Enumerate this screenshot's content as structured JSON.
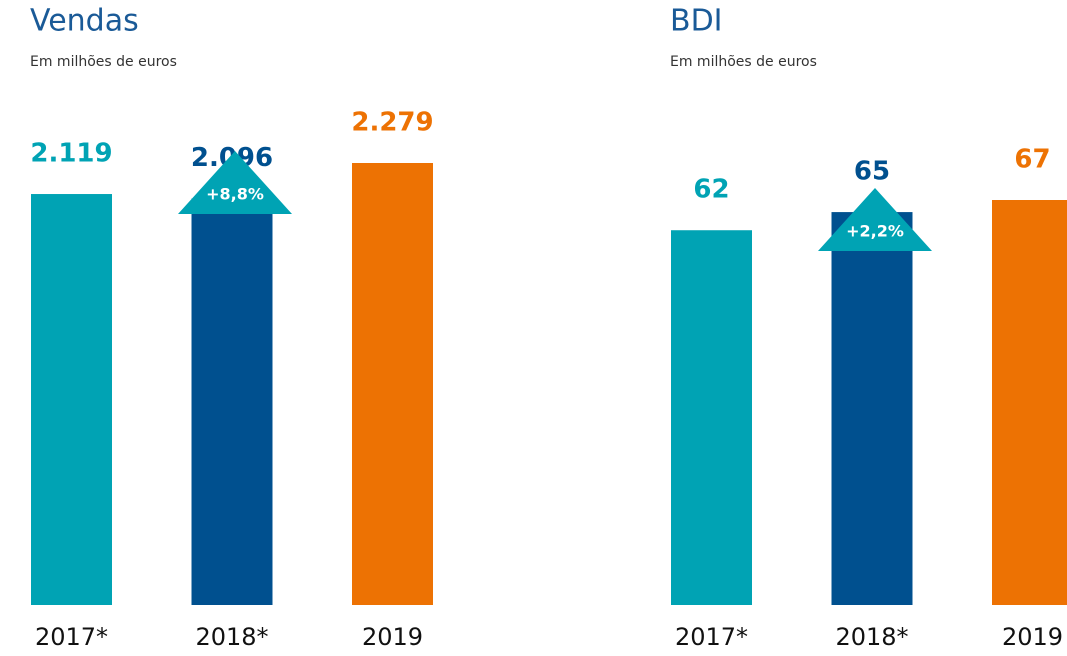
{
  "chart_data": [
    {
      "type": "bar",
      "title": "Vendas",
      "subtitle": "Em milhões de euros",
      "categories": [
        "2017*",
        "2018*",
        "2019"
      ],
      "values": [
        2119,
        2096,
        2279
      ],
      "value_labels": [
        "2.119",
        "2.096",
        "2.279"
      ],
      "colors": [
        "#00a3b4",
        "#00508f",
        "#ed7203"
      ],
      "annotation": "+8,8%"
    },
    {
      "type": "bar",
      "title": "BDI",
      "subtitle": "Em milhões de euros",
      "categories": [
        "2017*",
        "2018*",
        "2019"
      ],
      "values": [
        62,
        65,
        67
      ],
      "value_labels": [
        "62",
        "65",
        "67"
      ],
      "colors": [
        "#00a3b4",
        "#00508f",
        "#ed7203"
      ],
      "annotation": "+2,2%"
    }
  ]
}
